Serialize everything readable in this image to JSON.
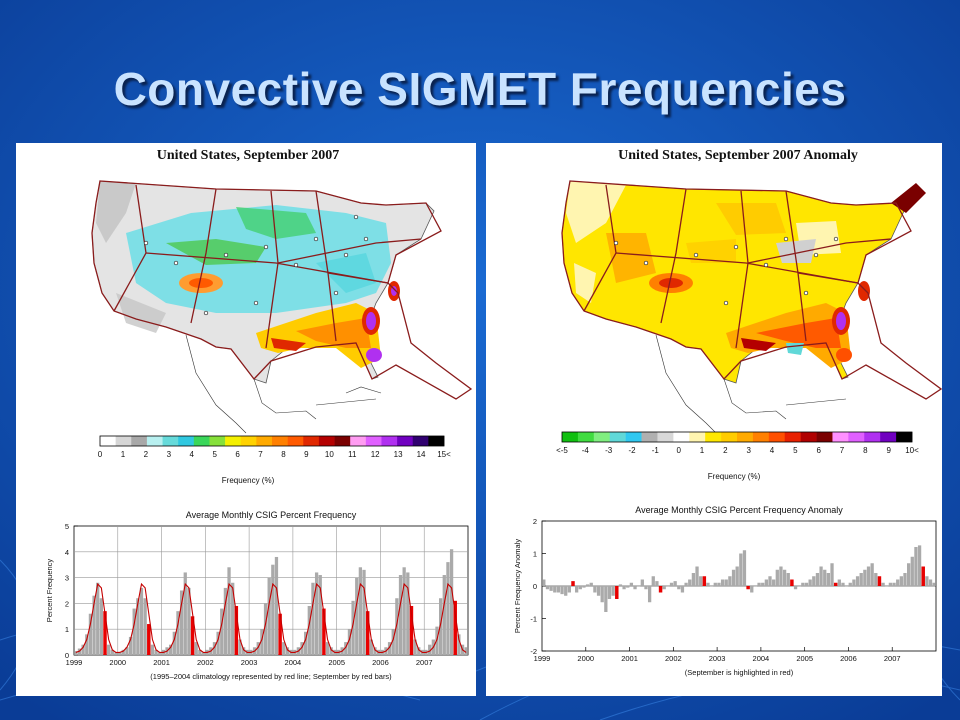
{
  "slide": {
    "title": "Convective SIGMET Frequencies"
  },
  "left_panel": {
    "map_title": "United States, September 2007",
    "colorbar": {
      "label": "Frequency (%)",
      "ticks": [
        "0",
        "1",
        "2",
        "3",
        "4",
        "5",
        "6",
        "7",
        "8",
        "9",
        "10",
        "11",
        "12",
        "13",
        "14",
        "15<"
      ],
      "colors": [
        "#ffffff",
        "#d6d6d6",
        "#a8a8a8",
        "#b8f0f0",
        "#66dada",
        "#30c8e0",
        "#3ad65a",
        "#86e03a",
        "#f4f000",
        "#ffd200",
        "#ffaa00",
        "#ff8000",
        "#ff5a00",
        "#e02800",
        "#b40000",
        "#7a0000",
        "#ff9cf2",
        "#e060ff",
        "#b030f0",
        "#7000c0",
        "#300070",
        "#000000"
      ]
    }
  },
  "right_panel": {
    "map_title": "United States, September 2007 Anomaly",
    "colorbar": {
      "label": "Frequency (%)",
      "ticks": [
        "<-5",
        "-4",
        "-3",
        "-2",
        "-1",
        "0",
        "1",
        "2",
        "3",
        "4",
        "5",
        "6",
        "7",
        "8",
        "9",
        "10<"
      ],
      "colors": [
        "#10c010",
        "#40dc40",
        "#80ee80",
        "#60d8d8",
        "#30c8f0",
        "#b0b0b0",
        "#d8d8d8",
        "#ffffff",
        "#fff5b0",
        "#ffe800",
        "#ffcc00",
        "#ffaa00",
        "#ff8000",
        "#ff5000",
        "#e82000",
        "#b00000",
        "#7a0000",
        "#ff90ff",
        "#e060ff",
        "#b030f0",
        "#7000c0",
        "#000000"
      ]
    }
  },
  "chart_data": [
    {
      "type": "bar",
      "title": "Average Monthly CSIG Percent Frequency",
      "xlabel": "",
      "ylabel": "Percent Frequency",
      "ylim": [
        0,
        5
      ],
      "yticks": [
        0,
        1,
        2,
        3,
        4,
        5
      ],
      "xtick_labels": [
        "1999",
        "2000",
        "2001",
        "2002",
        "2003",
        "2004",
        "2005",
        "2006",
        "2007"
      ],
      "caption": "(1995–2004 climatology represented by red line; September by red bars)",
      "grid": true,
      "start": "1999-01",
      "series": [
        {
          "kind": "monthly-bars",
          "values": [
            0.15,
            0.25,
            0.4,
            0.8,
            1.6,
            2.3,
            2.8,
            2.2,
            1.7,
            0.4,
            0.2,
            0.1,
            0.1,
            0.2,
            0.3,
            0.7,
            1.8,
            2.2,
            2.6,
            2.2,
            1.2,
            0.4,
            0.2,
            0.1,
            0.2,
            0.3,
            0.4,
            0.9,
            1.7,
            2.5,
            3.2,
            2.6,
            1.5,
            0.5,
            0.2,
            0.1,
            0.2,
            0.3,
            0.5,
            0.9,
            1.8,
            2.6,
            3.4,
            2.8,
            1.9,
            0.6,
            0.3,
            0.2,
            0.2,
            0.3,
            0.5,
            1.0,
            2.0,
            3.0,
            3.5,
            3.8,
            1.6,
            0.5,
            0.3,
            0.2,
            0.2,
            0.3,
            0.5,
            0.9,
            1.9,
            2.8,
            3.2,
            3.1,
            1.8,
            0.5,
            0.3,
            0.2,
            0.2,
            0.3,
            0.5,
            1.0,
            2.1,
            3.0,
            3.4,
            3.3,
            1.7,
            0.6,
            0.3,
            0.2,
            0.2,
            0.3,
            0.5,
            1.0,
            2.2,
            3.1,
            3.4,
            3.2,
            1.9,
            0.6,
            0.3,
            0.2,
            0.2,
            0.4,
            0.6,
            1.1,
            2.2,
            3.1,
            3.6,
            4.1,
            2.1,
            0.8,
            0.4,
            0.3
          ]
        },
        {
          "name": "1995–2004 climatology",
          "kind": "monthly-climatology",
          "values": [
            0.1,
            0.15,
            0.3,
            0.6,
            1.2,
            2.0,
            2.75,
            2.6,
            1.6,
            0.6,
            0.2,
            0.1
          ]
        }
      ],
      "highlight_month": 9
    },
    {
      "type": "bar",
      "title": "Average Monthly CSIG Percent Frequency Anomaly",
      "xlabel": "",
      "ylabel": "Percent Frequency Anomaly",
      "ylim": [
        -2,
        2
      ],
      "yticks": [
        -2,
        -1,
        0,
        1,
        2
      ],
      "xtick_labels": [
        "1999",
        "2000",
        "2001",
        "2002",
        "2003",
        "2004",
        "2005",
        "2006",
        "2007"
      ],
      "caption": "(September is highlighted in red)",
      "grid": false,
      "start": "1999-01",
      "series": [
        {
          "kind": "monthly-anomaly",
          "values": [
            0.2,
            -0.1,
            -0.15,
            -0.2,
            -0.2,
            -0.25,
            -0.3,
            -0.2,
            0.15,
            -0.2,
            -0.1,
            -0.05,
            0.05,
            0.1,
            -0.2,
            -0.3,
            -0.5,
            -0.8,
            -0.4,
            -0.3,
            -0.4,
            0.05,
            -0.1,
            -0.05,
            0.1,
            -0.1,
            0.0,
            0.2,
            -0.1,
            -0.5,
            0.3,
            0.15,
            -0.2,
            -0.1,
            0.0,
            0.1,
            0.15,
            -0.1,
            -0.2,
            0.1,
            0.2,
            0.4,
            0.6,
            0.3,
            0.3,
            0.1,
            0.0,
            0.1,
            0.1,
            0.2,
            0.2,
            0.3,
            0.5,
            0.6,
            1.0,
            1.1,
            -0.1,
            -0.2,
            0.0,
            0.1,
            0.1,
            0.2,
            0.3,
            0.2,
            0.5,
            0.6,
            0.5,
            0.4,
            0.2,
            -0.1,
            0.0,
            0.1,
            0.1,
            0.2,
            0.3,
            0.4,
            0.6,
            0.5,
            0.4,
            0.7,
            0.1,
            0.2,
            0.1,
            0.0,
            0.1,
            0.2,
            0.3,
            0.4,
            0.5,
            0.6,
            0.7,
            0.4,
            0.3,
            0.1,
            0.0,
            0.1,
            0.1,
            0.2,
            0.3,
            0.4,
            0.7,
            0.9,
            1.2,
            1.25,
            0.6,
            0.3,
            0.2,
            0.1
          ]
        }
      ],
      "highlight_month": 9
    }
  ]
}
